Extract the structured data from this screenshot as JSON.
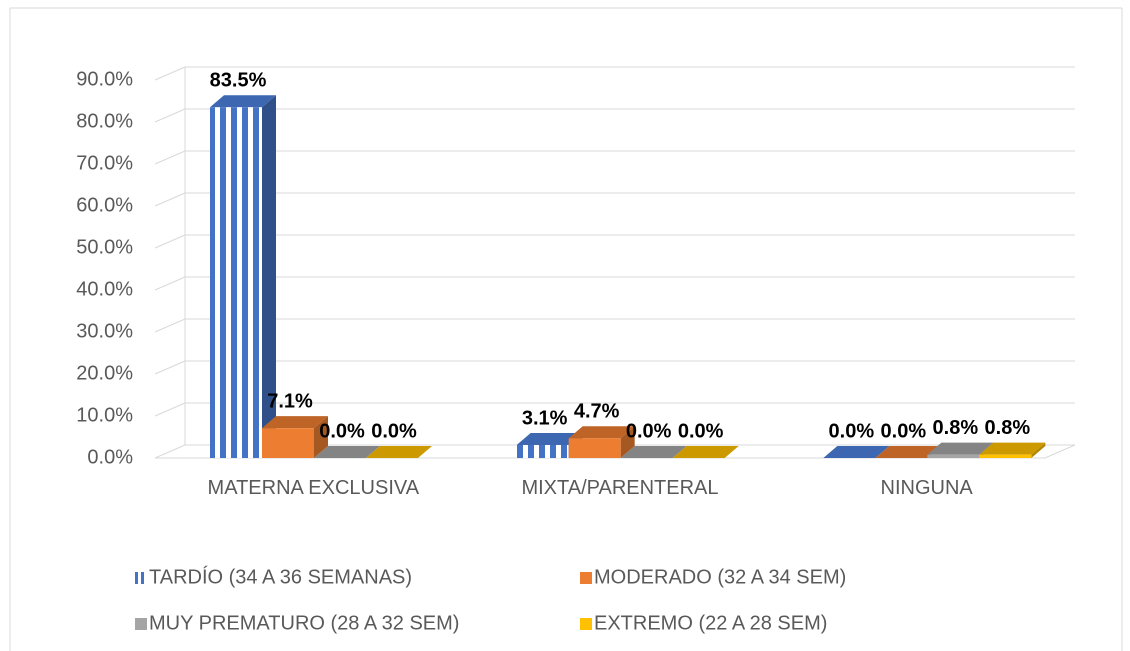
{
  "chart_data": {
    "type": "bar3d",
    "categories": [
      "MATERNA EXCLUSIVA",
      "MIXTA/PARENTERAL",
      "NINGUNA"
    ],
    "series": [
      {
        "name": "TARDÍO (34 A 36 SEMANAS)",
        "color": "#4472c4",
        "pattern": "stripes",
        "values": [
          83.5,
          3.1,
          0.0
        ],
        "value_labels": [
          "83.5%",
          "3.1%",
          "0.0%"
        ]
      },
      {
        "name": "MODERADO (32 A 34 SEM)",
        "color": "#ed7d31",
        "values": [
          7.1,
          4.7,
          0.0
        ],
        "value_labels": [
          "7.1%",
          "4.7%",
          "0.0%"
        ]
      },
      {
        "name": "MUY PREMATURO (28 A 32 SEM)",
        "color": "#a5a5a5",
        "values": [
          0.0,
          0.0,
          0.8
        ],
        "value_labels": [
          "0.0%",
          "0.0%",
          "0.8%"
        ]
      },
      {
        "name": "EXTREMO (22 A 28 SEM)",
        "color": "#ffc000",
        "values": [
          0.0,
          0.0,
          0.8
        ],
        "value_labels": [
          "0.0%",
          "0.0%",
          "0.8%"
        ]
      }
    ],
    "ylim": [
      0,
      90
    ],
    "yticks": [
      {
        "value": 0,
        "label": "0.0%"
      },
      {
        "value": 10,
        "label": "10.0%"
      },
      {
        "value": 20,
        "label": "20.0%"
      },
      {
        "value": 30,
        "label": "30.0%"
      },
      {
        "value": 40,
        "label": "40.0%"
      },
      {
        "value": 50,
        "label": "50.0%"
      },
      {
        "value": 60,
        "label": "60.0%"
      },
      {
        "value": 70,
        "label": "70.0%"
      },
      {
        "value": 80,
        "label": "80.0%"
      },
      {
        "value": 90,
        "label": "90.0%"
      }
    ],
    "grid": true,
    "legend": "bottom"
  }
}
